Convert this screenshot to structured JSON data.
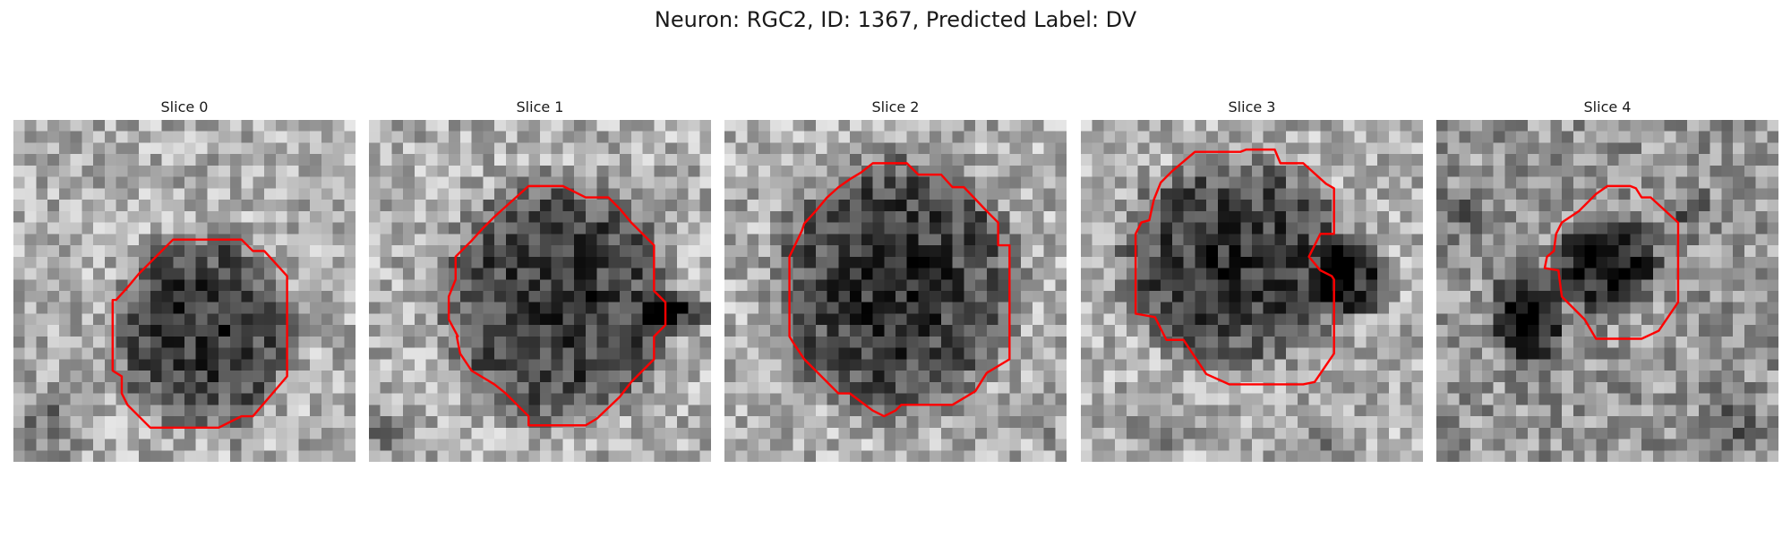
{
  "figure": {
    "title": "Neuron: RGC2, ID: 1367, Predicted Label: DV",
    "contour_color": "#ff0000"
  },
  "slices": [
    {
      "title": "Slice 0"
    },
    {
      "title": "Slice 1"
    },
    {
      "title": "Slice 2"
    },
    {
      "title": "Slice 3"
    },
    {
      "title": "Slice 4"
    }
  ]
}
